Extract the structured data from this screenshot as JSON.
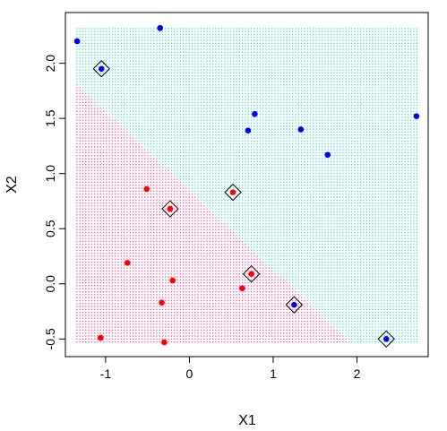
{
  "chart_data": {
    "type": "scatter",
    "title": "",
    "xlabel": "X1",
    "ylabel": "X2",
    "xlim": [
      -1.48,
      2.85
    ],
    "ylim": [
      -0.66,
      2.46
    ],
    "x_ticks": [
      -1,
      0,
      1,
      2
    ],
    "x_tick_labels": [
      "-1",
      "0",
      "1",
      "2"
    ],
    "y_ticks": [
      -0.5,
      0.0,
      0.5,
      1.0,
      1.5,
      2.0
    ],
    "y_tick_labels": [
      "-0.5",
      "0.0",
      "0.5",
      "1.0",
      "1.5",
      "2.0"
    ],
    "grid": false,
    "legend": "none",
    "decision_region": {
      "x_range": [
        -1.35,
        2.72
      ],
      "y_range": [
        -0.54,
        2.32
      ],
      "boundary_points": [
        [
          -1.35,
          1.82
        ],
        [
          1.93,
          -0.54
        ]
      ],
      "classes": [
        {
          "side": "upper-right",
          "color": "#40E0D0"
        },
        {
          "side": "lower-left",
          "color": "#FF4F9F"
        }
      ]
    },
    "series": [
      {
        "color": "#0000ff",
        "x": [
          -1.34,
          -0.35,
          -1.05,
          0.78,
          0.7,
          1.33,
          2.71,
          1.65,
          1.25,
          2.35
        ],
        "y": [
          2.2,
          2.32,
          1.95,
          1.54,
          1.39,
          1.4,
          1.52,
          1.17,
          -0.19,
          -0.5
        ]
      },
      {
        "color": "#ff0000",
        "x": [
          -0.51,
          0.52,
          -0.23,
          -0.74,
          -0.2,
          -0.33,
          0.63,
          0.74,
          -1.06,
          -0.3
        ],
        "y": [
          0.86,
          0.83,
          0.68,
          0.19,
          0.03,
          -0.17,
          -0.04,
          0.09,
          -0.49,
          -0.53
        ]
      }
    ],
    "support_vectors": {
      "x": [
        -1.05,
        0.52,
        -0.23,
        0.74,
        1.25,
        2.35
      ],
      "y": [
        1.95,
        0.83,
        0.68,
        0.09,
        -0.19,
        -0.5
      ]
    }
  }
}
